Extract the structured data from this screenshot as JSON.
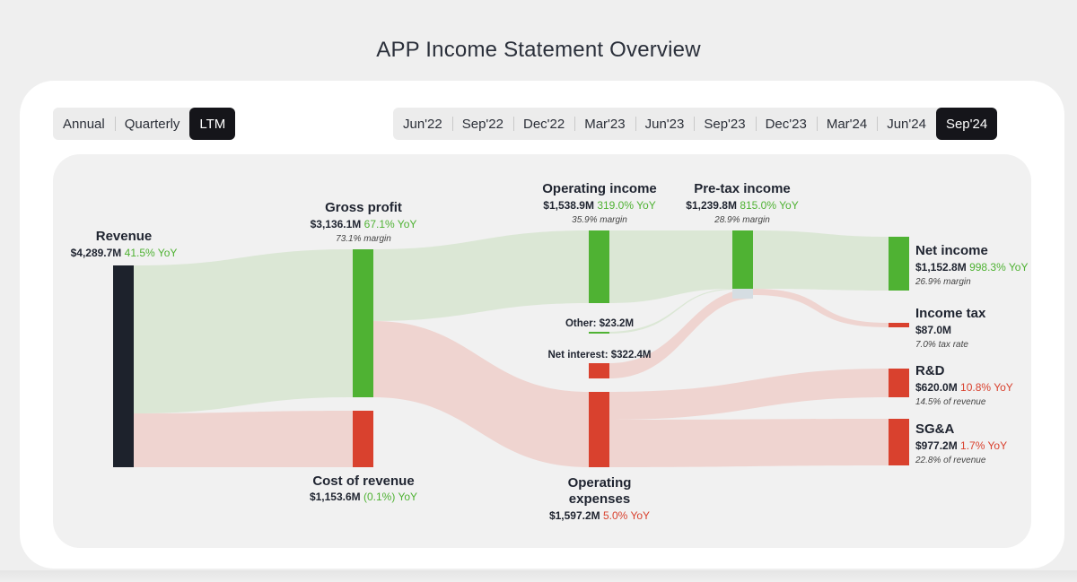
{
  "page_title": "APP Income Statement Overview",
  "period_tabs": [
    {
      "label": "Annual",
      "active": false
    },
    {
      "label": "Quarterly",
      "active": false
    },
    {
      "label": "LTM",
      "active": true
    }
  ],
  "date_tabs": [
    {
      "label": "Jun'22",
      "active": false
    },
    {
      "label": "Sep'22",
      "active": false
    },
    {
      "label": "Dec'22",
      "active": false
    },
    {
      "label": "Mar'23",
      "active": false
    },
    {
      "label": "Jun'23",
      "active": false
    },
    {
      "label": "Sep'23",
      "active": false
    },
    {
      "label": "Dec'23",
      "active": false
    },
    {
      "label": "Mar'24",
      "active": false
    },
    {
      "label": "Jun'24",
      "active": false
    },
    {
      "label": "Sep'24",
      "active": true
    }
  ],
  "colors": {
    "profit": "#4fb233",
    "expense": "#d9412e",
    "revenue": "#1d222c",
    "profit_flow": "#dbe7d5",
    "expense_flow": "#efd4d0",
    "yoy_up": "#4fb233",
    "yoy_down": "#d9412e",
    "unallocated": "#d5dde2"
  },
  "sankey": {
    "nodes": {
      "revenue": {
        "name": "Revenue",
        "value": "$4,289.7M",
        "yoy": "41.5% YoY",
        "yoy_trend": "up",
        "note": "",
        "value_musd": 4289.7
      },
      "gross_profit": {
        "name": "Gross profit",
        "value": "$3,136.1M",
        "yoy": "67.1% YoY",
        "yoy_trend": "up",
        "note": "73.1% margin",
        "value_musd": 3136.1
      },
      "cost_of_revenue": {
        "name": "Cost of revenue",
        "value": "$1,153.6M",
        "yoy": "(0.1%) YoY",
        "yoy_trend": "up",
        "note": "",
        "value_musd": 1153.6
      },
      "operating_income": {
        "name": "Operating income",
        "value": "$1,538.9M",
        "yoy": "319.0% YoY",
        "yoy_trend": "up",
        "note": "35.9% margin",
        "value_musd": 1538.9
      },
      "operating_expenses": {
        "name_line1": "Operating",
        "name_line2": "expenses",
        "value": "$1,597.2M",
        "yoy": "5.0% YoY",
        "yoy_trend": "down",
        "note": "",
        "value_musd": 1597.2
      },
      "other": {
        "label": "Other: $23.2M",
        "value_musd": 23.2
      },
      "net_interest": {
        "label": "Net interest: $322.4M",
        "value_musd": 322.4
      },
      "pretax_income": {
        "name": "Pre-tax income",
        "value": "$1,239.8M",
        "yoy": "815.0% YoY",
        "yoy_trend": "up",
        "note": "28.9% margin",
        "value_musd": 1239.8
      },
      "net_income": {
        "name": "Net income",
        "value": "$1,152.8M",
        "yoy": "998.3% YoY",
        "yoy_trend": "up",
        "note": "26.9% margin",
        "value_musd": 1152.8
      },
      "income_tax": {
        "name": "Income tax",
        "value": "$87.0M",
        "yoy": "",
        "yoy_trend": "",
        "note": "7.0% tax rate",
        "value_musd": 87.0
      },
      "rd": {
        "name": "R&D",
        "value": "$620.0M",
        "yoy": "10.8% YoY",
        "yoy_trend": "down",
        "note": "14.5% of revenue",
        "value_musd": 620.0
      },
      "sga": {
        "name": "SG&A",
        "value": "$977.2M",
        "yoy": "1.7% YoY",
        "yoy_trend": "down",
        "note": "22.8% of revenue",
        "value_musd": 977.2
      }
    },
    "links": [
      {
        "source": "Revenue",
        "target": "Gross profit",
        "value_musd": 3136.1
      },
      {
        "source": "Revenue",
        "target": "Cost of revenue",
        "value_musd": 1153.6
      },
      {
        "source": "Gross profit",
        "target": "Operating income",
        "value_musd": 1538.9
      },
      {
        "source": "Gross profit",
        "target": "Operating expenses",
        "value_musd": 1597.2
      },
      {
        "source": "Operating income",
        "target": "Pre-tax income",
        "value_musd": 1538.9
      },
      {
        "source": "Other",
        "target": "Pre-tax income",
        "value_musd": 23.2
      },
      {
        "source": "Pre-tax income",
        "target": "Net interest",
        "value_musd": 322.4
      },
      {
        "source": "Pre-tax income",
        "target": "Net income",
        "value_musd": 1152.8
      },
      {
        "source": "Pre-tax income",
        "target": "Income tax",
        "value_musd": 87.0
      },
      {
        "source": "Operating expenses",
        "target": "R&D",
        "value_musd": 620.0
      },
      {
        "source": "Operating expenses",
        "target": "SG&A",
        "value_musd": 977.2
      }
    ]
  }
}
